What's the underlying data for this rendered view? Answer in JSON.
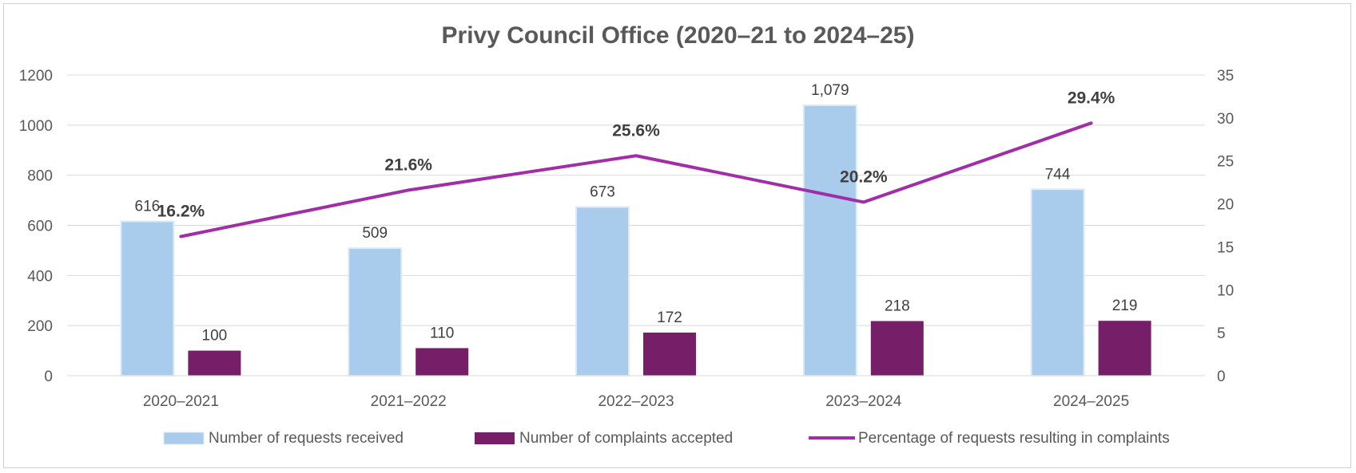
{
  "chart_data": {
    "type": "bar",
    "title": "Privy Council Office (2020–21 to 2024–25)",
    "categories": [
      "2020–2021",
      "2021–2022",
      "2022–2023",
      "2023–2024",
      "2024–2025"
    ],
    "series": [
      {
        "name": "Number of requests received",
        "type": "bar",
        "axis": "left",
        "color": "#a9cbec",
        "values": [
          616,
          509,
          673,
          1079,
          744
        ],
        "labels": [
          "616",
          "509",
          "673",
          "1,079",
          "744"
        ]
      },
      {
        "name": "Number of complaints accepted",
        "type": "bar",
        "axis": "left",
        "color": "#771e68",
        "values": [
          100,
          110,
          172,
          218,
          219
        ],
        "labels": [
          "100",
          "110",
          "172",
          "218",
          "219"
        ]
      },
      {
        "name": "Percentage of requests resulting in complaints",
        "type": "line",
        "axis": "right",
        "color": "#a12ea6",
        "values": [
          16.2,
          21.6,
          25.6,
          20.2,
          29.4
        ],
        "labels": [
          "16.2%",
          "21.6%",
          "25.6%",
          "20.2%",
          "29.4%"
        ]
      }
    ],
    "ylim": [
      0,
      1200
    ],
    "y_ticks": [
      "0",
      "200",
      "400",
      "600",
      "800",
      "1000",
      "1200"
    ],
    "y2lim": [
      0,
      35
    ],
    "y2_ticks": [
      "0",
      "5",
      "10",
      "15",
      "20",
      "25",
      "30",
      "35"
    ],
    "grid": true,
    "legend_position": "bottom"
  }
}
